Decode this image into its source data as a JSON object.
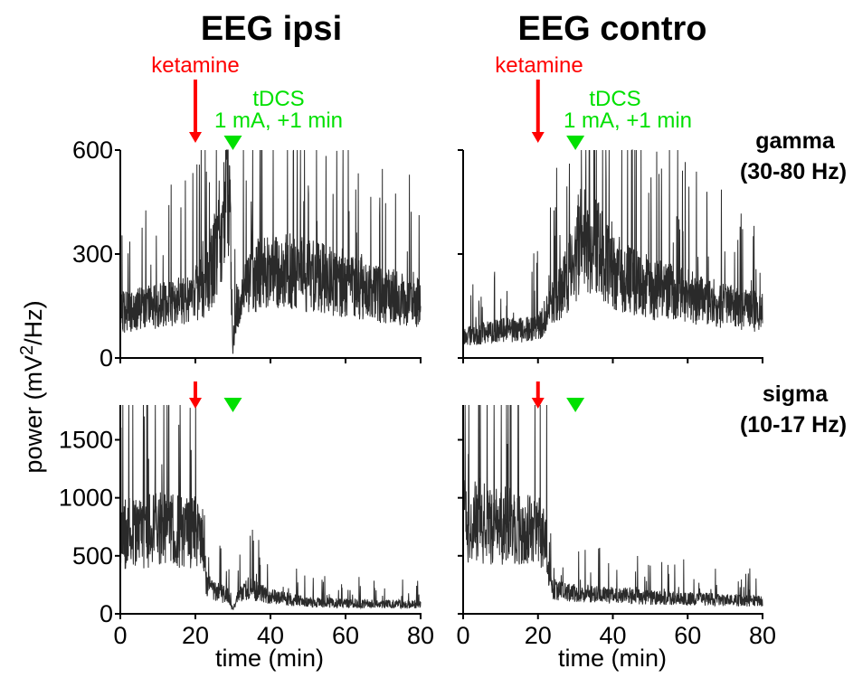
{
  "columns": [
    {
      "title": "EEG ipsi",
      "stim_label": "ketamine",
      "tdcs_label": "tDCS",
      "tdcs_detail": "1 mA, +1 min"
    },
    {
      "title": "EEG contro",
      "stim_label": "ketamine",
      "tdcs_label": "tDCS",
      "tdcs_detail": "1 mA, +1 min"
    }
  ],
  "bands": [
    {
      "name": "gamma",
      "range": "(30-80 Hz)"
    },
    {
      "name": "sigma",
      "range": "(10-17 Hz)"
    }
  ],
  "ylabel": "power (mV",
  "ylabel_sup": "2",
  "ylabel_tail": "/Hz)",
  "xlabel": "time (min)",
  "colors": {
    "trace": "#2a2a2a",
    "ketamine": "#ff0000",
    "tdcs": "#00e000"
  },
  "chart_data": [
    {
      "type": "line",
      "panel": "gamma-ipsi",
      "xlim": [
        0,
        80
      ],
      "ylim": [
        0,
        600
      ],
      "xticks": [
        "0",
        "20",
        "40",
        "60",
        "80"
      ],
      "yticks": [
        "0",
        "300",
        "600"
      ],
      "ketamine_min": 20,
      "tdcs_min": 30,
      "x": [
        0,
        5,
        10,
        15,
        19,
        23,
        26,
        29,
        30,
        31,
        35,
        40,
        50,
        60,
        70,
        80
      ],
      "y": [
        130,
        140,
        150,
        160,
        170,
        220,
        320,
        500,
        20,
        150,
        230,
        260,
        240,
        210,
        180,
        160
      ]
    },
    {
      "type": "line",
      "panel": "gamma-contro",
      "xlim": [
        0,
        80
      ],
      "ylim": [
        0,
        600
      ],
      "xticks": [
        "0",
        "20",
        "40",
        "60",
        "80"
      ],
      "yticks": [
        "0",
        "300",
        "600"
      ],
      "ketamine_min": 20,
      "tdcs_min": 30,
      "x": [
        0,
        5,
        10,
        15,
        20,
        25,
        29,
        32,
        36,
        40,
        50,
        60,
        70,
        80
      ],
      "y": [
        60,
        70,
        80,
        80,
        90,
        170,
        260,
        350,
        320,
        250,
        200,
        180,
        150,
        130
      ]
    },
    {
      "type": "line",
      "panel": "sigma-ipsi",
      "xlim": [
        0,
        80
      ],
      "ylim": [
        0,
        1800
      ],
      "xticks": [
        "0",
        "20",
        "40",
        "60",
        "80"
      ],
      "yticks": [
        "0",
        "500",
        "1000",
        "1500"
      ],
      "ketamine_min": 20,
      "tdcs_min": 30,
      "x": [
        0,
        5,
        10,
        15,
        20,
        22,
        23,
        25,
        29,
        30,
        31,
        34,
        40,
        50,
        60,
        70,
        80
      ],
      "y": [
        700,
        680,
        750,
        720,
        700,
        650,
        250,
        200,
        150,
        30,
        130,
        220,
        150,
        100,
        90,
        85,
        80
      ]
    },
    {
      "type": "line",
      "panel": "sigma-contro",
      "xlim": [
        0,
        80
      ],
      "ylim": [
        0,
        1800
      ],
      "xticks": [
        "0",
        "20",
        "40",
        "60",
        "80"
      ],
      "yticks": [
        "0",
        "500",
        "1000",
        "1500"
      ],
      "ketamine_min": 20,
      "tdcs_min": 30,
      "x": [
        0,
        5,
        10,
        15,
        20,
        22,
        23,
        25,
        30,
        40,
        50,
        60,
        70,
        80
      ],
      "y": [
        800,
        780,
        760,
        740,
        700,
        650,
        250,
        200,
        180,
        160,
        140,
        130,
        120,
        110
      ]
    }
  ]
}
